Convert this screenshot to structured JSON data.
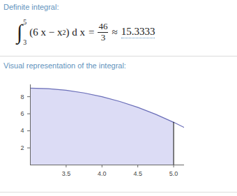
{
  "pods": [
    {
      "heading": "Definite integral:",
      "formula": {
        "integral_sign": "∫",
        "lower": 3,
        "upper": 5,
        "integrand": "(6 x − x",
        "exponent": 2,
        "differential": ") d x",
        "equals": "=",
        "result": {
          "numerator": 46,
          "denominator": 3
        },
        "approx_sign": "≈",
        "approx": 15.3333
      }
    },
    {
      "heading": "Visual representation of the integral:"
    }
  ],
  "chart_data": {
    "type": "area",
    "x": [
      3,
      3.25,
      3.5,
      3.75,
      4,
      4.25,
      4.5,
      4.75,
      5,
      5.15
    ],
    "values": [
      9,
      8.94,
      8.75,
      8.44,
      8,
      7.44,
      6.75,
      5.94,
      5,
      4.38
    ],
    "shade_from": 3,
    "shade_to": 5,
    "color": "#6b6fb8",
    "xlim": [
      3,
      5.15
    ],
    "xticks": [
      3.5,
      {
        "value": 4,
        "label": "4.0"
      },
      4.5,
      {
        "value": 5,
        "label": "5.0"
      }
    ],
    "ylim": [
      0,
      9.4
    ],
    "yticks": [
      2,
      4,
      6,
      8
    ],
    "grid": false
  }
}
